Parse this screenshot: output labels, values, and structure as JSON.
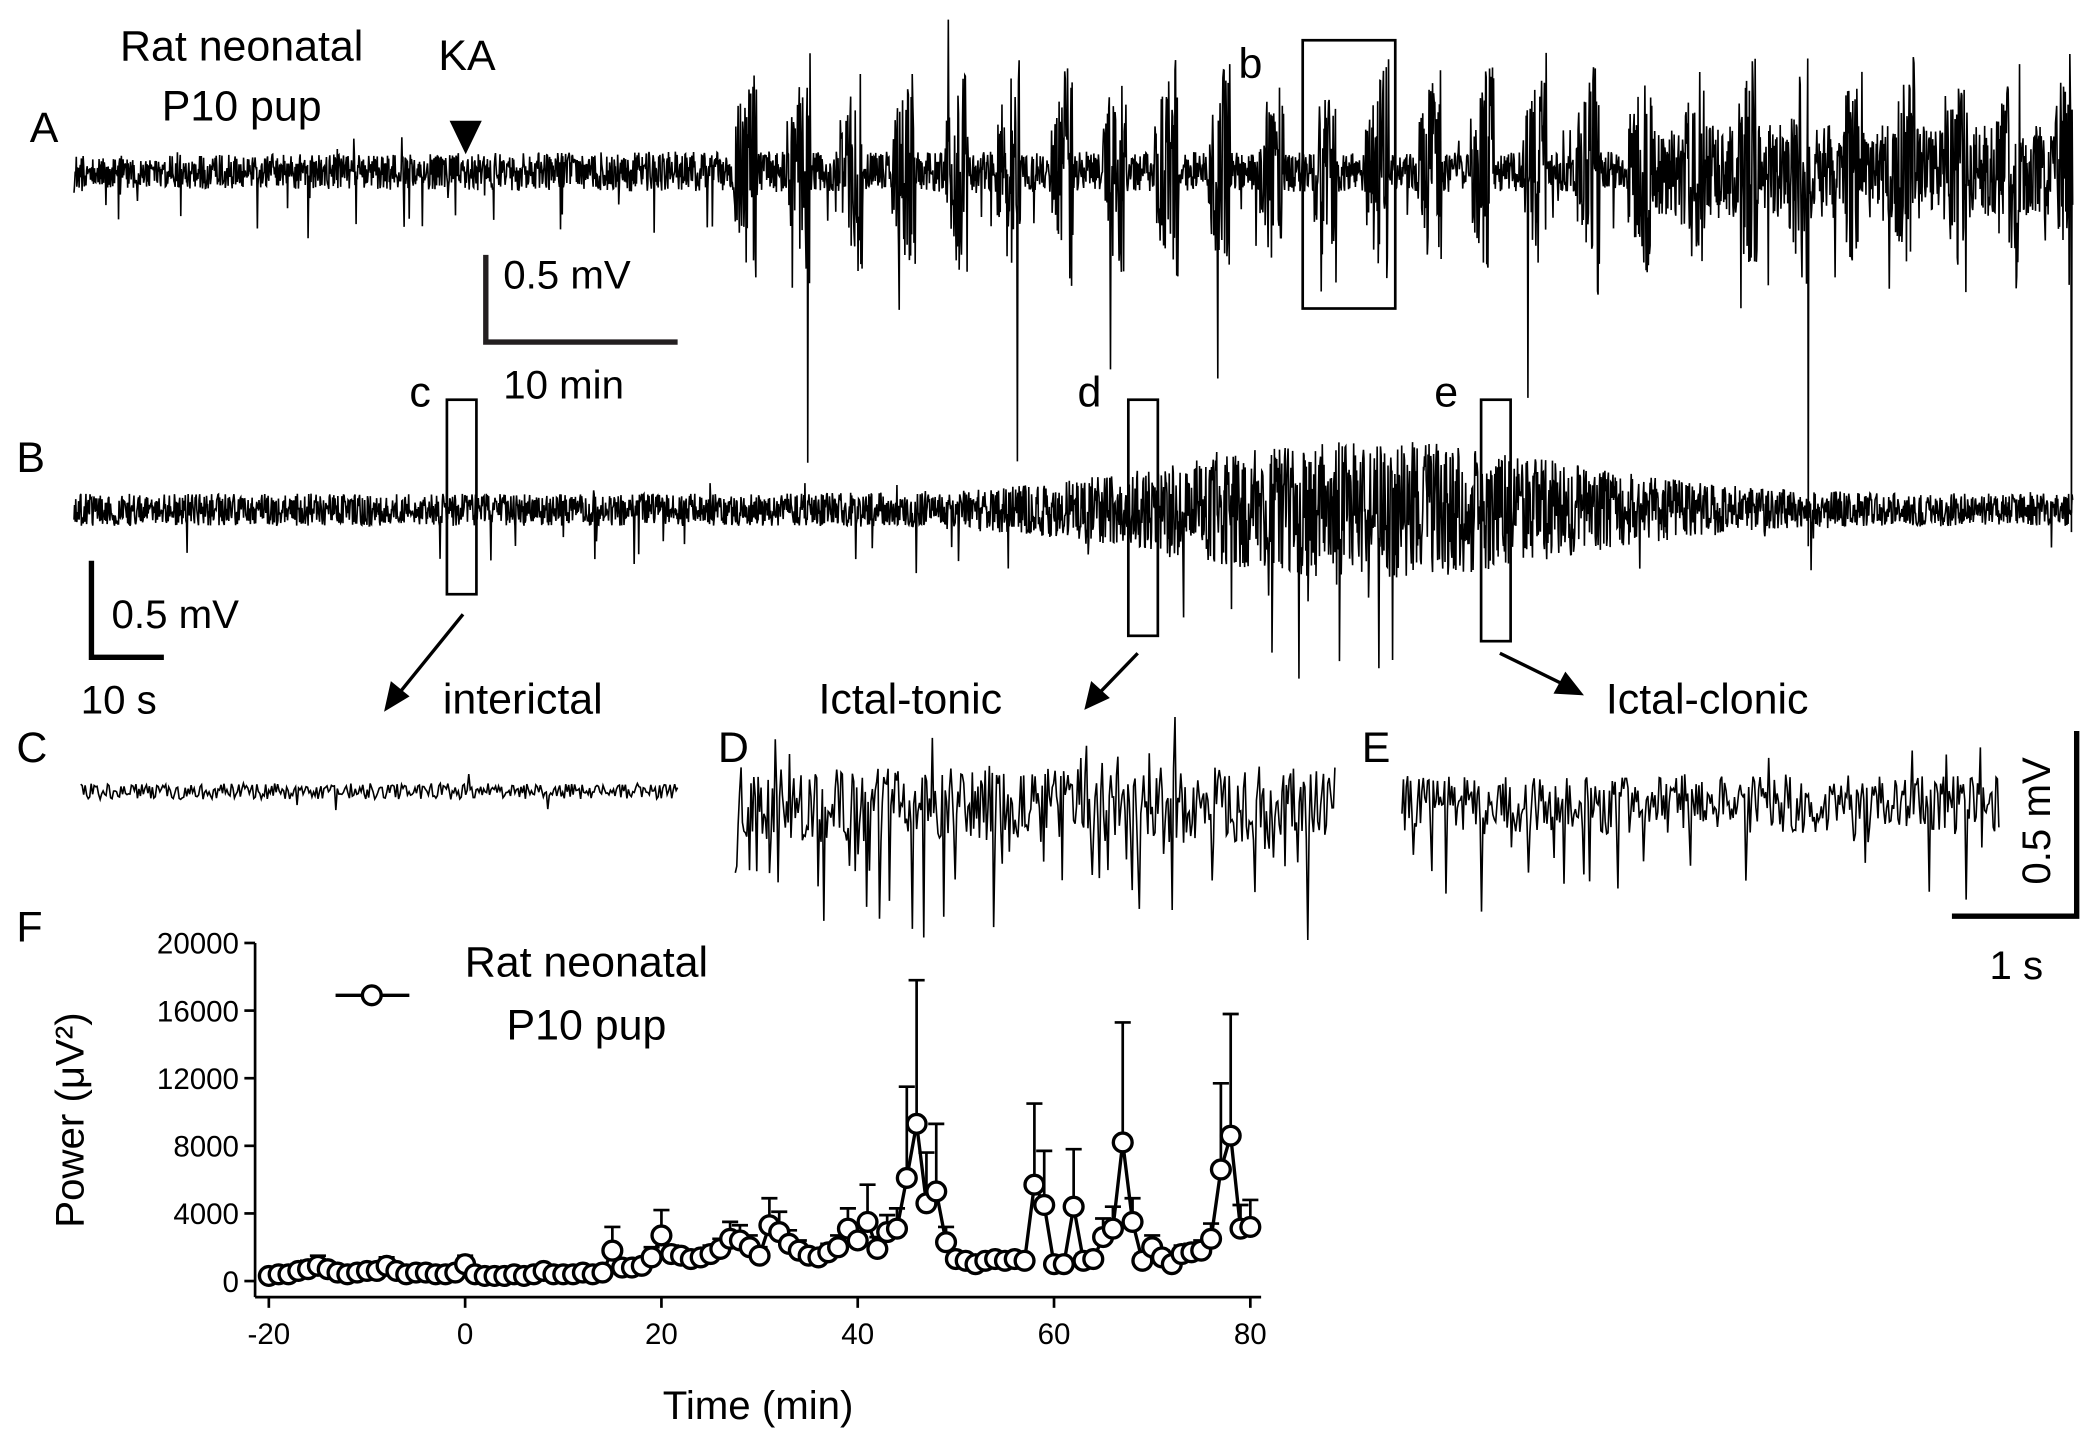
{
  "panels": {
    "A": {
      "label": "A",
      "title_lines": [
        "Rat neonatal",
        "P10 pup"
      ],
      "marker": "KA",
      "box": "b",
      "scale_v": "0.5 mV",
      "scale_h": "10 min"
    },
    "B": {
      "label": "B",
      "boxes": [
        "c",
        "d",
        "e"
      ],
      "scale_v": "0.5 mV",
      "scale_h": "10 s"
    },
    "C": {
      "label": "C",
      "caption": "interictal"
    },
    "D": {
      "label": "D",
      "caption": "Ictal-tonic"
    },
    "E": {
      "label": "E",
      "caption": "Ictal-clonic",
      "scale_v": "0.5 mV",
      "scale_h": "1 s"
    },
    "F": {
      "label": "F"
    }
  },
  "chart_data": {
    "type": "line",
    "xlabel": "Time (min)",
    "ylabel": "Power (μV²)",
    "xlim": [
      -21.4,
      81.1
    ],
    "ylim": [
      -950,
      20000
    ],
    "xticks": [
      -20,
      0,
      20,
      40,
      60,
      80
    ],
    "yticks": [
      0,
      4000,
      8000,
      12000,
      16000,
      20000
    ],
    "x": [
      -20,
      -19,
      -18,
      -17,
      -16,
      -15,
      -14,
      -13,
      -12,
      -11,
      -10,
      -9,
      -8,
      -7,
      -6,
      -5,
      -4,
      -3,
      -2,
      -1,
      0,
      1,
      2,
      3,
      4,
      5,
      6,
      7,
      8,
      9,
      10,
      11,
      12,
      13,
      14,
      15,
      16,
      17,
      18,
      19,
      20,
      21,
      22,
      23,
      24,
      25,
      26,
      27,
      28,
      29,
      30,
      31,
      32,
      33,
      34,
      35,
      36,
      37,
      38,
      39,
      40,
      41,
      42,
      43,
      44,
      45,
      46,
      47,
      48,
      49,
      50,
      51,
      52,
      53,
      54,
      55,
      56,
      57,
      58,
      59,
      60,
      61,
      62,
      63,
      64,
      65,
      66,
      67,
      68,
      69,
      70,
      71,
      72,
      73,
      74,
      75,
      76,
      77,
      78,
      79,
      80
    ],
    "series": [
      {
        "name": "Rat neonatal P10 pup",
        "color": "#000000",
        "values": [
          300,
          400,
          400,
          600,
          700,
          900,
          700,
          500,
          400,
          500,
          600,
          600,
          900,
          600,
          400,
          500,
          500,
          400,
          400,
          500,
          1000,
          400,
          300,
          300,
          300,
          400,
          300,
          400,
          600,
          400,
          400,
          400,
          500,
          400,
          500,
          1800,
          800,
          800,
          900,
          1400,
          2700,
          1600,
          1500,
          1300,
          1400,
          1600,
          1900,
          2500,
          2400,
          2000,
          1500,
          3300,
          2900,
          2200,
          1800,
          1500,
          1400,
          1700,
          2000,
          3100,
          2400,
          3500,
          1900,
          2900,
          3100,
          6100,
          9300,
          4600,
          5300,
          2300,
          1300,
          1200,
          1000,
          1200,
          1300,
          1200,
          1300,
          1200,
          5700,
          4500,
          1000,
          1000,
          4400,
          1200,
          1300,
          2600,
          3100,
          8200,
          3500,
          1200,
          2000,
          1400,
          1000,
          1600,
          1700,
          1800,
          2500,
          6600,
          8600,
          3100,
          3200
        ],
        "errors": [
          200,
          200,
          300,
          400,
          500,
          600,
          400,
          300,
          200,
          300,
          300,
          300,
          500,
          300,
          200,
          300,
          300,
          200,
          200,
          300,
          500,
          200,
          200,
          200,
          200,
          200,
          200,
          200,
          300,
          200,
          200,
          200,
          300,
          200,
          300,
          1400,
          400,
          400,
          400,
          600,
          1500,
          500,
          400,
          300,
          400,
          500,
          600,
          1000,
          900,
          700,
          500,
          1600,
          1200,
          800,
          600,
          400,
          400,
          500,
          700,
          1200,
          900,
          2200,
          700,
          1000,
          1200,
          5400,
          8500,
          3000,
          4000,
          900,
          400,
          300,
          300,
          300,
          300,
          300,
          300,
          300,
          4800,
          3200,
          300,
          300,
          3400,
          400,
          400,
          1100,
          1300,
          7100,
          1400,
          400,
          700,
          400,
          300,
          500,
          500,
          600,
          900,
          5100,
          7200,
          1400,
          1600
        ]
      }
    ],
    "legend": "upper left"
  }
}
